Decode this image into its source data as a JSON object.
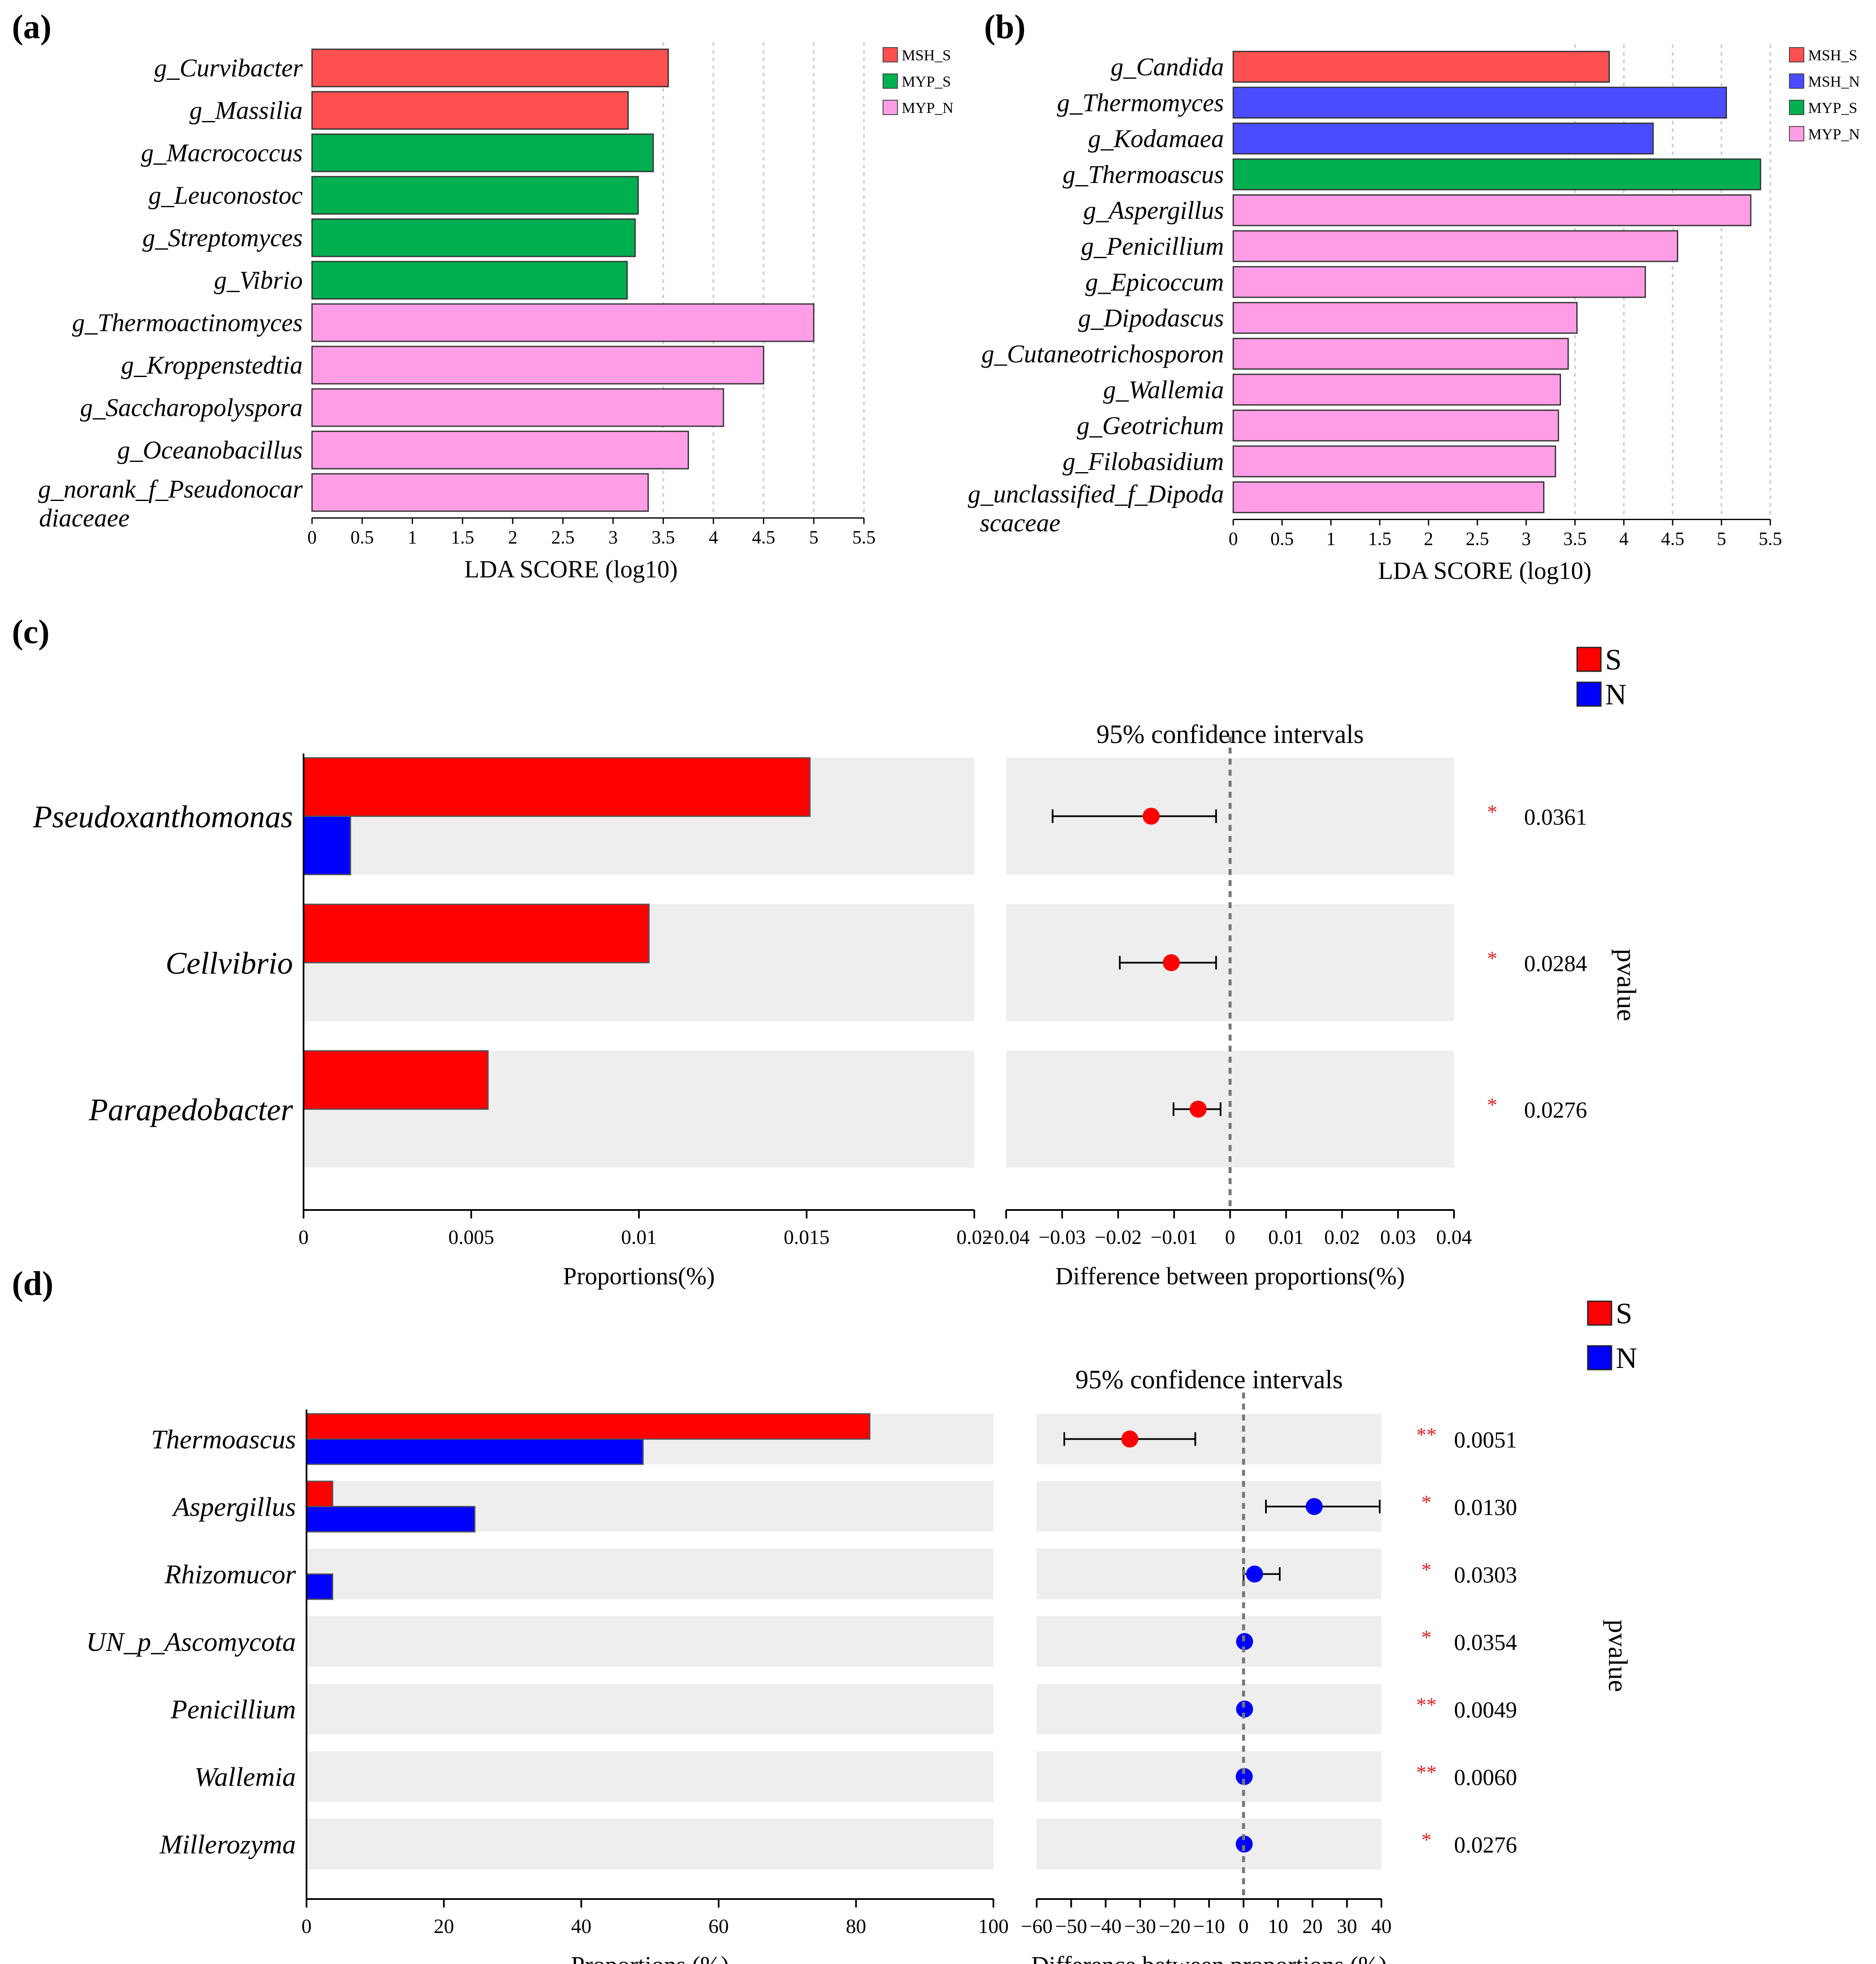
{
  "colors": {
    "MSH_S": "#ff5050",
    "MSH_N": "#4b4bff",
    "MYP_S": "#00b050",
    "MYP_N": "#ff9ee6",
    "S": "#ff0000",
    "N": "#0000ff",
    "band": "#eeeeee"
  },
  "panels": {
    "a": "(a)",
    "b": "(b)",
    "c": "(c)",
    "d": "(d)"
  },
  "chart_data": [
    {
      "id": "a",
      "type": "bar",
      "orientation": "horizontal",
      "xlabel": "LDA SCORE (log10)",
      "xlim": [
        0,
        5.5
      ],
      "xticks": [
        "0",
        "0.5",
        "1",
        "1.5",
        "2",
        "2.5",
        "3",
        "3.5",
        "4",
        "4.5",
        "5",
        "5.5"
      ],
      "legend": [
        "MSH_S",
        "MYP_S",
        "MYP_N"
      ],
      "legend_position": "top-right",
      "bars": [
        {
          "label": "g_Curvibacter",
          "value": 3.55,
          "group": "MSH_S"
        },
        {
          "label": "g_Massilia",
          "value": 3.15,
          "group": "MSH_S"
        },
        {
          "label": "g_Macrococcus",
          "value": 3.4,
          "group": "MYP_S"
        },
        {
          "label": "g_Leuconostoc",
          "value": 3.25,
          "group": "MYP_S"
        },
        {
          "label": "g_Streptomyces",
          "value": 3.22,
          "group": "MYP_S"
        },
        {
          "label": "g_Vibrio",
          "value": 3.14,
          "group": "MYP_S"
        },
        {
          "label": "g_Thermoactinomyces",
          "value": 5.0,
          "group": "MYP_N"
        },
        {
          "label": "g_Kroppenstedtia",
          "value": 4.5,
          "group": "MYP_N"
        },
        {
          "label": "g_Saccharopolyspora",
          "value": 4.1,
          "group": "MYP_N"
        },
        {
          "label": "g_Oceanobacillus",
          "value": 3.75,
          "group": "MYP_N"
        },
        {
          "label": "g_norank_f_Pseudonocar",
          "label2": "diaceaee",
          "value": 3.35,
          "group": "MYP_N"
        }
      ]
    },
    {
      "id": "b",
      "type": "bar",
      "orientation": "horizontal",
      "xlabel": "LDA  SCORE (log10)",
      "xlim": [
        0,
        5.5
      ],
      "xticks": [
        "0",
        "0.5",
        "1",
        "1.5",
        "2",
        "2.5",
        "3",
        "3.5",
        "4",
        "4.5",
        "5",
        "5.5"
      ],
      "legend": [
        "MSH_S",
        "MSH_N",
        "MYP_S",
        "MYP_N"
      ],
      "legend_position": "top-right",
      "bars": [
        {
          "label": "g_Candida",
          "value": 3.85,
          "group": "MSH_S"
        },
        {
          "label": "g_Thermomyces",
          "value": 5.05,
          "group": "MSH_N"
        },
        {
          "label": "g_Kodamaea",
          "value": 4.3,
          "group": "MSH_N"
        },
        {
          "label": "g_Thermoascus",
          "value": 5.4,
          "group": "MYP_S"
        },
        {
          "label": "g_Aspergillus",
          "value": 5.3,
          "group": "MYP_N"
        },
        {
          "label": "g_Penicillium",
          "value": 4.55,
          "group": "MYP_N"
        },
        {
          "label": "g_Epicoccum",
          "value": 4.22,
          "group": "MYP_N"
        },
        {
          "label": "g_Dipodascus",
          "value": 3.52,
          "group": "MYP_N"
        },
        {
          "label": "g_Cutaneotrichosporon",
          "value": 3.43,
          "group": "MYP_N"
        },
        {
          "label": "g_Wallemia",
          "value": 3.35,
          "group": "MYP_N"
        },
        {
          "label": "g_Geotrichum",
          "value": 3.33,
          "group": "MYP_N"
        },
        {
          "label": "g_Filobasidium",
          "value": 3.3,
          "group": "MYP_N"
        },
        {
          "label": "g_unclassified_f_Dipoda",
          "label2": "scaceae",
          "value": 3.18,
          "group": "MYP_N"
        }
      ]
    },
    {
      "id": "c",
      "type": "bar",
      "subtype": "extended-error-bar",
      "legend": [
        "S",
        "N"
      ],
      "legend_position": "top-right",
      "xlabel": "Proportions(%)",
      "xlim": [
        0,
        0.02
      ],
      "xticks": [
        "0",
        "0.005",
        "0.01",
        "0.015",
        "0.02"
      ],
      "ci_title": "95% confidence intervals",
      "ci_xlabel": "Difference between proportions(%)",
      "ci_xlim": [
        -0.04,
        0.04
      ],
      "ci_xticks": [
        "−0.04",
        "−0.03",
        "−0.02",
        "−0.01",
        "0",
        "0.01",
        "0.02",
        "0.03",
        "0.04"
      ],
      "pvalue_label": "pvalue",
      "rows": [
        {
          "label": "Pseudoxanthomonas",
          "S": 0.0151,
          "N": 0.0014,
          "diff": -0.0141,
          "ci_low": -0.0317,
          "ci_high": -0.0025,
          "sig": "*",
          "p": "0.0361",
          "dot": "S"
        },
        {
          "label": "Cellvibrio",
          "S": 0.0103,
          "N": 0.0,
          "diff": -0.0105,
          "ci_low": -0.0197,
          "ci_high": -0.0025,
          "sig": "*",
          "p": "0.0284",
          "dot": "S"
        },
        {
          "label": "Parapedobacter",
          "S": 0.0055,
          "N": 0.0,
          "diff": -0.0057,
          "ci_low": -0.0101,
          "ci_high": -0.0017,
          "sig": "*",
          "p": "0.0276",
          "dot": "S"
        }
      ]
    },
    {
      "id": "d",
      "type": "bar",
      "subtype": "extended-error-bar",
      "legend": [
        "S",
        "N"
      ],
      "legend_position": "top-right",
      "xlabel": "Proportions (%)",
      "xlim": [
        0,
        100
      ],
      "xticks": [
        "0",
        "20",
        "40",
        "60",
        "80",
        "100"
      ],
      "ci_title": "95% confidence intervals",
      "ci_xlabel": "Difference between proportions (%)",
      "ci_xlim": [
        -60,
        40
      ],
      "ci_xticks": [
        "−60",
        "−50",
        "−40",
        "−30",
        "−20",
        "−10",
        "0",
        "10",
        "20",
        "30",
        "40"
      ],
      "pvalue_label": "pvalue",
      "rows": [
        {
          "label": "Thermoascus",
          "S": 82,
          "N": 49,
          "diff": -33,
          "ci_low": -52,
          "ci_high": -14,
          "sig": "**",
          "p": "0.0051",
          "dot": "S"
        },
        {
          "label": "Aspergillus",
          "S": 3.8,
          "N": 24.5,
          "diff": 20.5,
          "ci_low": 6.5,
          "ci_high": 39.5,
          "sig": "*",
          "p": "0.0130",
          "dot": "N"
        },
        {
          "label": "Rhizomucor",
          "S": 0,
          "N": 3.8,
          "diff": 3.2,
          "ci_low": 0,
          "ci_high": 10.5,
          "sig": "*",
          "p": "0.0303",
          "dot": "N"
        },
        {
          "label": "UN_p_Ascomycota",
          "S": 0,
          "N": 0,
          "diff": 0.3,
          "ci_low": 0.3,
          "ci_high": 0.3,
          "sig": "*",
          "p": "0.0354",
          "dot": "N"
        },
        {
          "label": "Penicillium",
          "S": 0,
          "N": 0,
          "diff": 0.3,
          "ci_low": 0.3,
          "ci_high": 0.3,
          "sig": "**",
          "p": "0.0049",
          "dot": "N"
        },
        {
          "label": "Wallemia",
          "S": 0,
          "N": 0,
          "diff": 0.2,
          "ci_low": 0.2,
          "ci_high": 0.2,
          "sig": "**",
          "p": "0.0060",
          "dot": "N"
        },
        {
          "label": "Millerozyma",
          "S": 0,
          "N": 0,
          "diff": 0.2,
          "ci_low": 0.2,
          "ci_high": 0.2,
          "sig": "*",
          "p": "0.0276",
          "dot": "N"
        }
      ]
    }
  ]
}
